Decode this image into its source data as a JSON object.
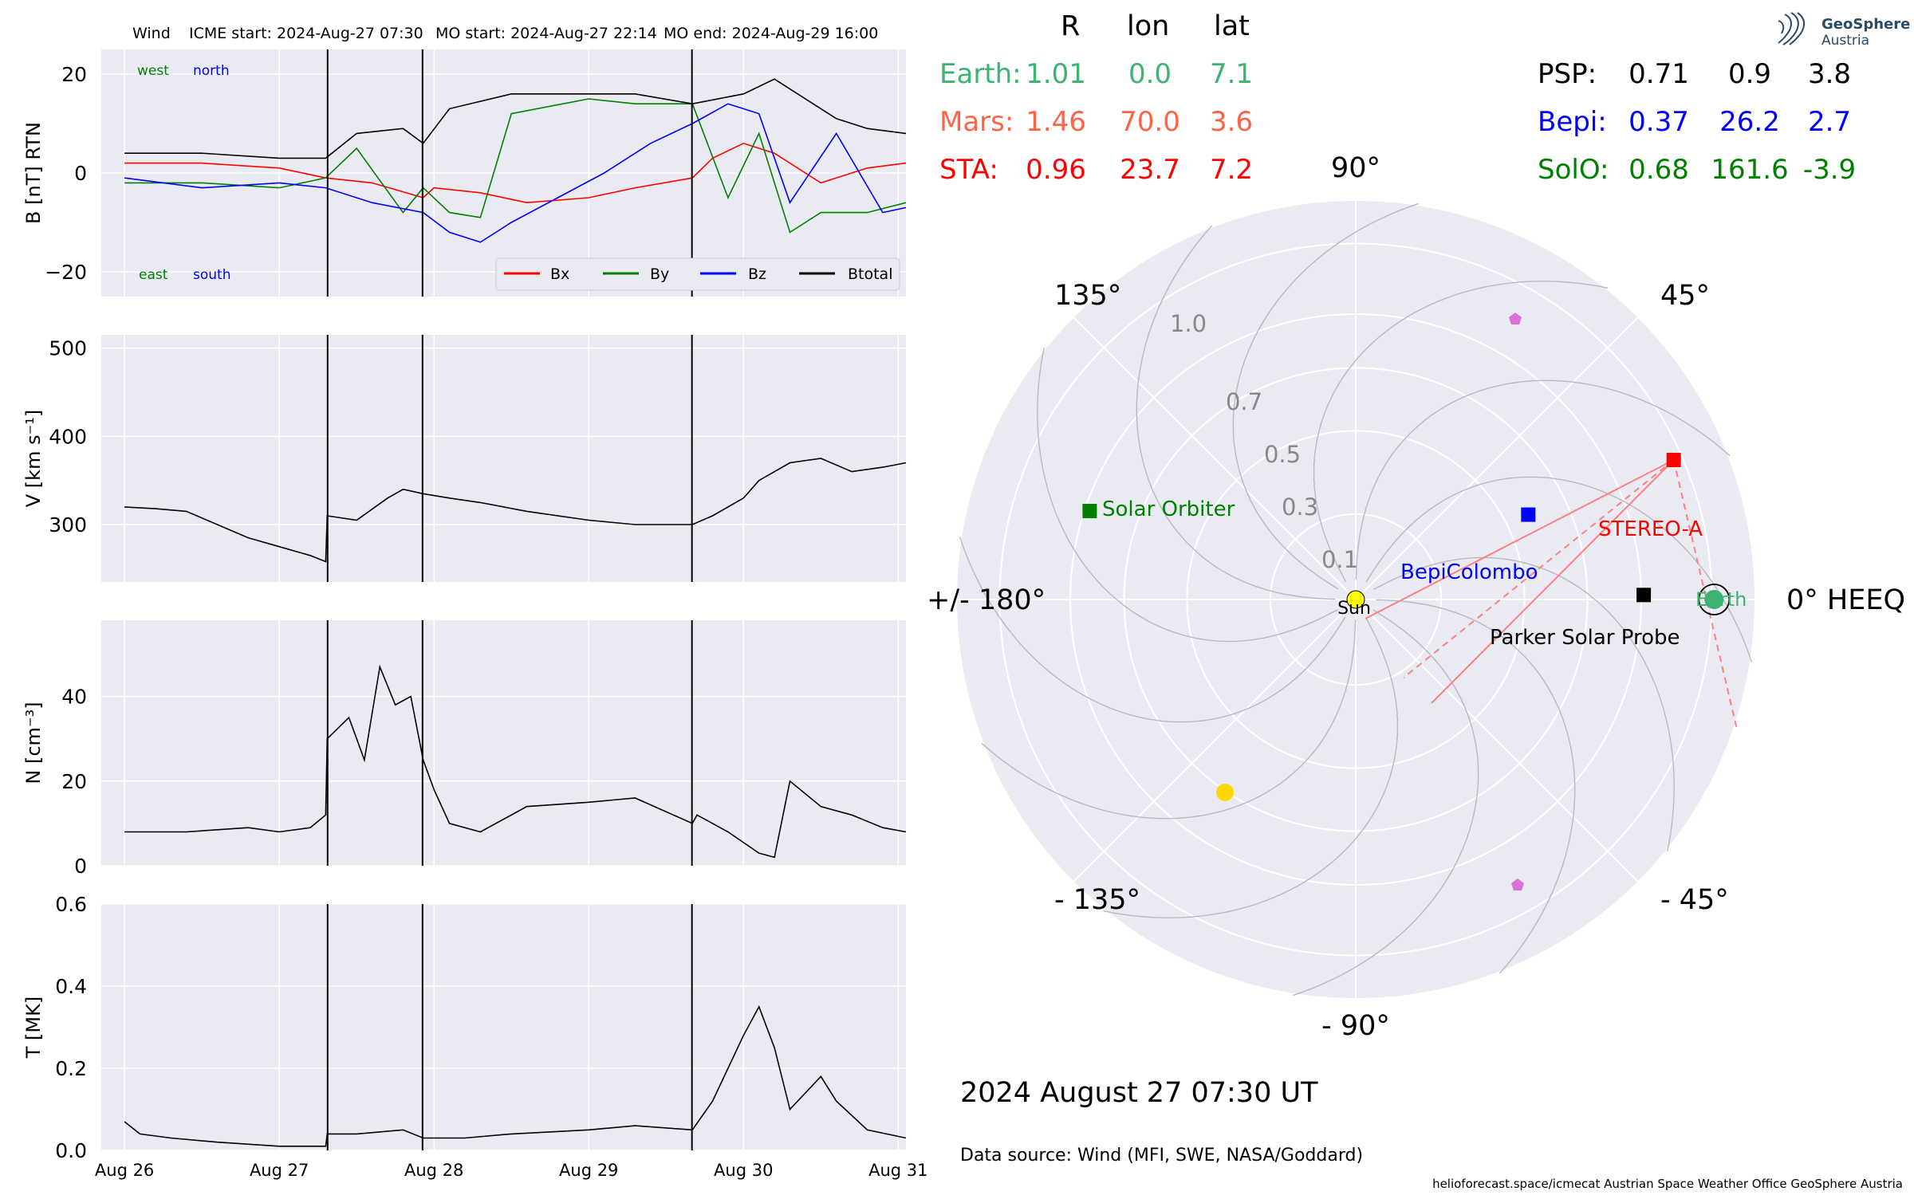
{
  "header": {
    "spacecraft": "Wind",
    "icme_start": "ICME start: 2024-Aug-27 07:30",
    "mo_start": "MO start: 2024-Aug-27 22:14",
    "mo_end": "MO end: 2024-Aug-29 16:00"
  },
  "colors": {
    "bx": "#ff0000",
    "by": "#008000",
    "bz": "#0000ff",
    "btotal": "#000000",
    "earth": "#3cb371",
    "mars": "#ff6347",
    "sta": "#ff0000",
    "psp": "#000000",
    "bepi": "#0000ff",
    "solo": "#008000",
    "panel_bg": "#eaeaf2",
    "grid": "#ffffff"
  },
  "position_table": {
    "headers": [
      "R",
      "lon",
      "lat"
    ],
    "left": [
      {
        "name": "Earth:",
        "r": "1.01",
        "lon": "0.0",
        "lat": "7.1",
        "color": "#3cb371"
      },
      {
        "name": "Mars:",
        "r": "1.46",
        "lon": "70.0",
        "lat": "3.6",
        "color": "#ff6347"
      },
      {
        "name": "STA:",
        "r": "0.96",
        "lon": "23.7",
        "lat": "7.2",
        "color": "#ff0000"
      }
    ],
    "right": [
      {
        "name": "PSP:",
        "r": "0.71",
        "lon": "0.9",
        "lat": "3.8",
        "color": "#000000"
      },
      {
        "name": "Bepi:",
        "r": "0.37",
        "lon": "26.2",
        "lat": "2.7",
        "color": "#0000ff"
      },
      {
        "name": "SolO:",
        "r": "0.68",
        "lon": "161.6",
        "lat": "-3.9",
        "color": "#008000"
      }
    ]
  },
  "logo": {
    "line1": "GeoSphere",
    "line2": "Austria"
  },
  "polar": {
    "angle_labels": {
      "a90": "90°",
      "a45": "45°",
      "a0": "0° HEEQ",
      "am45": "- 45°",
      "am90": "- 90°",
      "am135": "- 135°",
      "a180": "+/- 180°",
      "a135": "135°"
    },
    "radial_labels": [
      "0.1",
      "0.3",
      "0.5",
      "0.7",
      "1.0"
    ],
    "radial_values": [
      0.1,
      0.3,
      0.5,
      0.7,
      1.0
    ],
    "r_max": 1.2,
    "bodies": [
      {
        "name": "Sun",
        "r": 0.0,
        "lon": 0,
        "marker": "circle",
        "color": "#ffff00"
      },
      {
        "name": "Earth",
        "r": 1.01,
        "lon": 0.0,
        "marker": "circle",
        "color": "#3cb371"
      },
      {
        "name": "STEREO-A",
        "r": 0.96,
        "lon": 23.7,
        "marker": "square",
        "color": "#ff0000"
      },
      {
        "name": "BepiColombo",
        "r": 0.37,
        "lon": 26.2,
        "marker": "square",
        "color": "#0000ff"
      },
      {
        "name": "Parker Solar Probe",
        "r": 0.71,
        "lon": 0.9,
        "marker": "square",
        "color": "#000000"
      },
      {
        "name": "Solar Orbiter",
        "r": 0.68,
        "lon": 161.6,
        "marker": "square",
        "color": "#008000"
      }
    ],
    "labels": {
      "sun": "Sun",
      "earth": "Earth",
      "stereo_a": "STEREO-A",
      "bepi": "BepiColombo",
      "psp": "Parker Solar Probe",
      "solo": "Solar Orbiter"
    }
  },
  "footer": {
    "date": "2024 August 27  07:30 UT",
    "source": "Data source: Wind (MFI, SWE, NASA/Goddard)",
    "credits": "helioforecast.space/icmecat   Austrian Space Weather Office   GeoSphere Austria"
  },
  "chart_data": [
    {
      "type": "line",
      "ylabel": "B [nT] RTN",
      "ylim": [
        -25,
        25
      ],
      "yticks": [
        "20",
        "0",
        "−20"
      ],
      "ytick_values": [
        20,
        0,
        -20
      ],
      "annotations": [
        "west",
        "north",
        "east",
        "south"
      ],
      "legend": [
        "Bx",
        "By",
        "Bz",
        "Btotal"
      ],
      "legend_placement": "lower-right",
      "grid": true,
      "series": [
        {
          "name": "Bx",
          "x": [
            26.0,
            26.5,
            27.0,
            27.3,
            27.6,
            27.93,
            28.0,
            28.3,
            28.6,
            29.0,
            29.3,
            29.67,
            29.8,
            30.0,
            30.2,
            30.5,
            30.8,
            31.05
          ],
          "y": [
            2,
            2,
            1,
            -1,
            -2,
            -5,
            -3,
            -4,
            -6,
            -5,
            -3,
            -1,
            3,
            6,
            4,
            -2,
            1,
            2
          ]
        },
        {
          "name": "By",
          "x": [
            26.0,
            26.5,
            27.0,
            27.3,
            27.5,
            27.8,
            27.93,
            28.1,
            28.3,
            28.5,
            29.0,
            29.3,
            29.67,
            29.9,
            30.1,
            30.3,
            30.5,
            30.8,
            31.05
          ],
          "y": [
            -2,
            -2,
            -3,
            -1,
            5,
            -8,
            -3,
            -8,
            -9,
            12,
            15,
            14,
            14,
            -5,
            8,
            -12,
            -8,
            -8,
            -6
          ]
        },
        {
          "name": "Bz",
          "x": [
            26.0,
            26.5,
            27.0,
            27.3,
            27.6,
            27.93,
            28.1,
            28.3,
            28.5,
            28.8,
            29.1,
            29.4,
            29.67,
            29.9,
            30.1,
            30.3,
            30.6,
            30.9,
            31.05
          ],
          "y": [
            -1,
            -3,
            -2,
            -3,
            -6,
            -8,
            -12,
            -14,
            -10,
            -5,
            0,
            6,
            10,
            14,
            12,
            -6,
            8,
            -8,
            -7
          ]
        },
        {
          "name": "Btotal",
          "x": [
            26.0,
            26.5,
            27.0,
            27.3,
            27.5,
            27.8,
            27.93,
            28.1,
            28.5,
            29.0,
            29.3,
            29.67,
            30.0,
            30.2,
            30.4,
            30.6,
            30.8,
            31.05
          ],
          "y": [
            4,
            4,
            3,
            3,
            8,
            9,
            6,
            13,
            16,
            16,
            16,
            14,
            16,
            19,
            15,
            11,
            9,
            8
          ]
        }
      ]
    },
    {
      "type": "line",
      "ylabel": "V [km s⁻¹]",
      "ylim": [
        235,
        515
      ],
      "yticks": [
        "500",
        "400",
        "300"
      ],
      "ytick_values": [
        500,
        400,
        300
      ],
      "grid": true,
      "series": [
        {
          "name": "",
          "x": [
            26.0,
            26.2,
            26.4,
            26.6,
            26.8,
            27.0,
            27.2,
            27.3,
            27.31,
            27.5,
            27.7,
            27.8,
            27.93,
            28.1,
            28.3,
            28.6,
            29.0,
            29.3,
            29.5,
            29.67,
            29.8,
            30.0,
            30.1,
            30.3,
            30.5,
            30.7,
            30.9,
            31.05
          ],
          "y": [
            320,
            318,
            315,
            300,
            285,
            275,
            265,
            258,
            310,
            305,
            330,
            340,
            335,
            330,
            325,
            315,
            305,
            300,
            300,
            300,
            310,
            330,
            350,
            370,
            375,
            360,
            365,
            370
          ]
        }
      ]
    },
    {
      "type": "line",
      "ylabel": "N [cm⁻³]",
      "ylim": [
        0,
        58
      ],
      "yticks": [
        "40",
        "20",
        "0"
      ],
      "ytick_values": [
        40,
        20,
        0
      ],
      "grid": true,
      "series": [
        {
          "name": "",
          "x": [
            26.0,
            26.4,
            26.8,
            27.0,
            27.2,
            27.3,
            27.31,
            27.45,
            27.55,
            27.65,
            27.75,
            27.85,
            27.93,
            28.0,
            28.1,
            28.3,
            28.6,
            29.0,
            29.3,
            29.67,
            29.7,
            29.9,
            30.1,
            30.2,
            30.3,
            30.5,
            30.7,
            30.9,
            31.05
          ],
          "y": [
            8,
            8,
            9,
            8,
            9,
            12,
            30,
            35,
            25,
            47,
            38,
            40,
            25,
            18,
            10,
            8,
            14,
            15,
            16,
            10,
            12,
            8,
            3,
            2,
            20,
            14,
            12,
            9,
            8
          ]
        }
      ]
    },
    {
      "type": "line",
      "ylabel": "T [MK]",
      "ylim": [
        0,
        0.6
      ],
      "yticks": [
        "0.6",
        "0.4",
        "0.2",
        "0.0"
      ],
      "ytick_values": [
        0.6,
        0.4,
        0.2,
        0.0
      ],
      "xticks": [
        "Aug 26",
        "Aug 27",
        "Aug 28",
        "Aug 29",
        "Aug 30",
        "Aug 31"
      ],
      "xtick_values": [
        26,
        27,
        28,
        29,
        30,
        31
      ],
      "grid": true,
      "series": [
        {
          "name": "",
          "x": [
            26.0,
            26.1,
            26.3,
            26.6,
            27.0,
            27.3,
            27.31,
            27.5,
            27.8,
            27.93,
            28.2,
            28.5,
            29.0,
            29.3,
            29.67,
            29.8,
            29.9,
            30.0,
            30.1,
            30.2,
            30.3,
            30.5,
            30.6,
            30.8,
            31.05
          ],
          "y": [
            0.07,
            0.04,
            0.03,
            0.02,
            0.01,
            0.01,
            0.04,
            0.04,
            0.05,
            0.03,
            0.03,
            0.04,
            0.05,
            0.06,
            0.05,
            0.12,
            0.2,
            0.28,
            0.35,
            0.25,
            0.1,
            0.18,
            0.12,
            0.05,
            0.03
          ]
        }
      ]
    }
  ]
}
